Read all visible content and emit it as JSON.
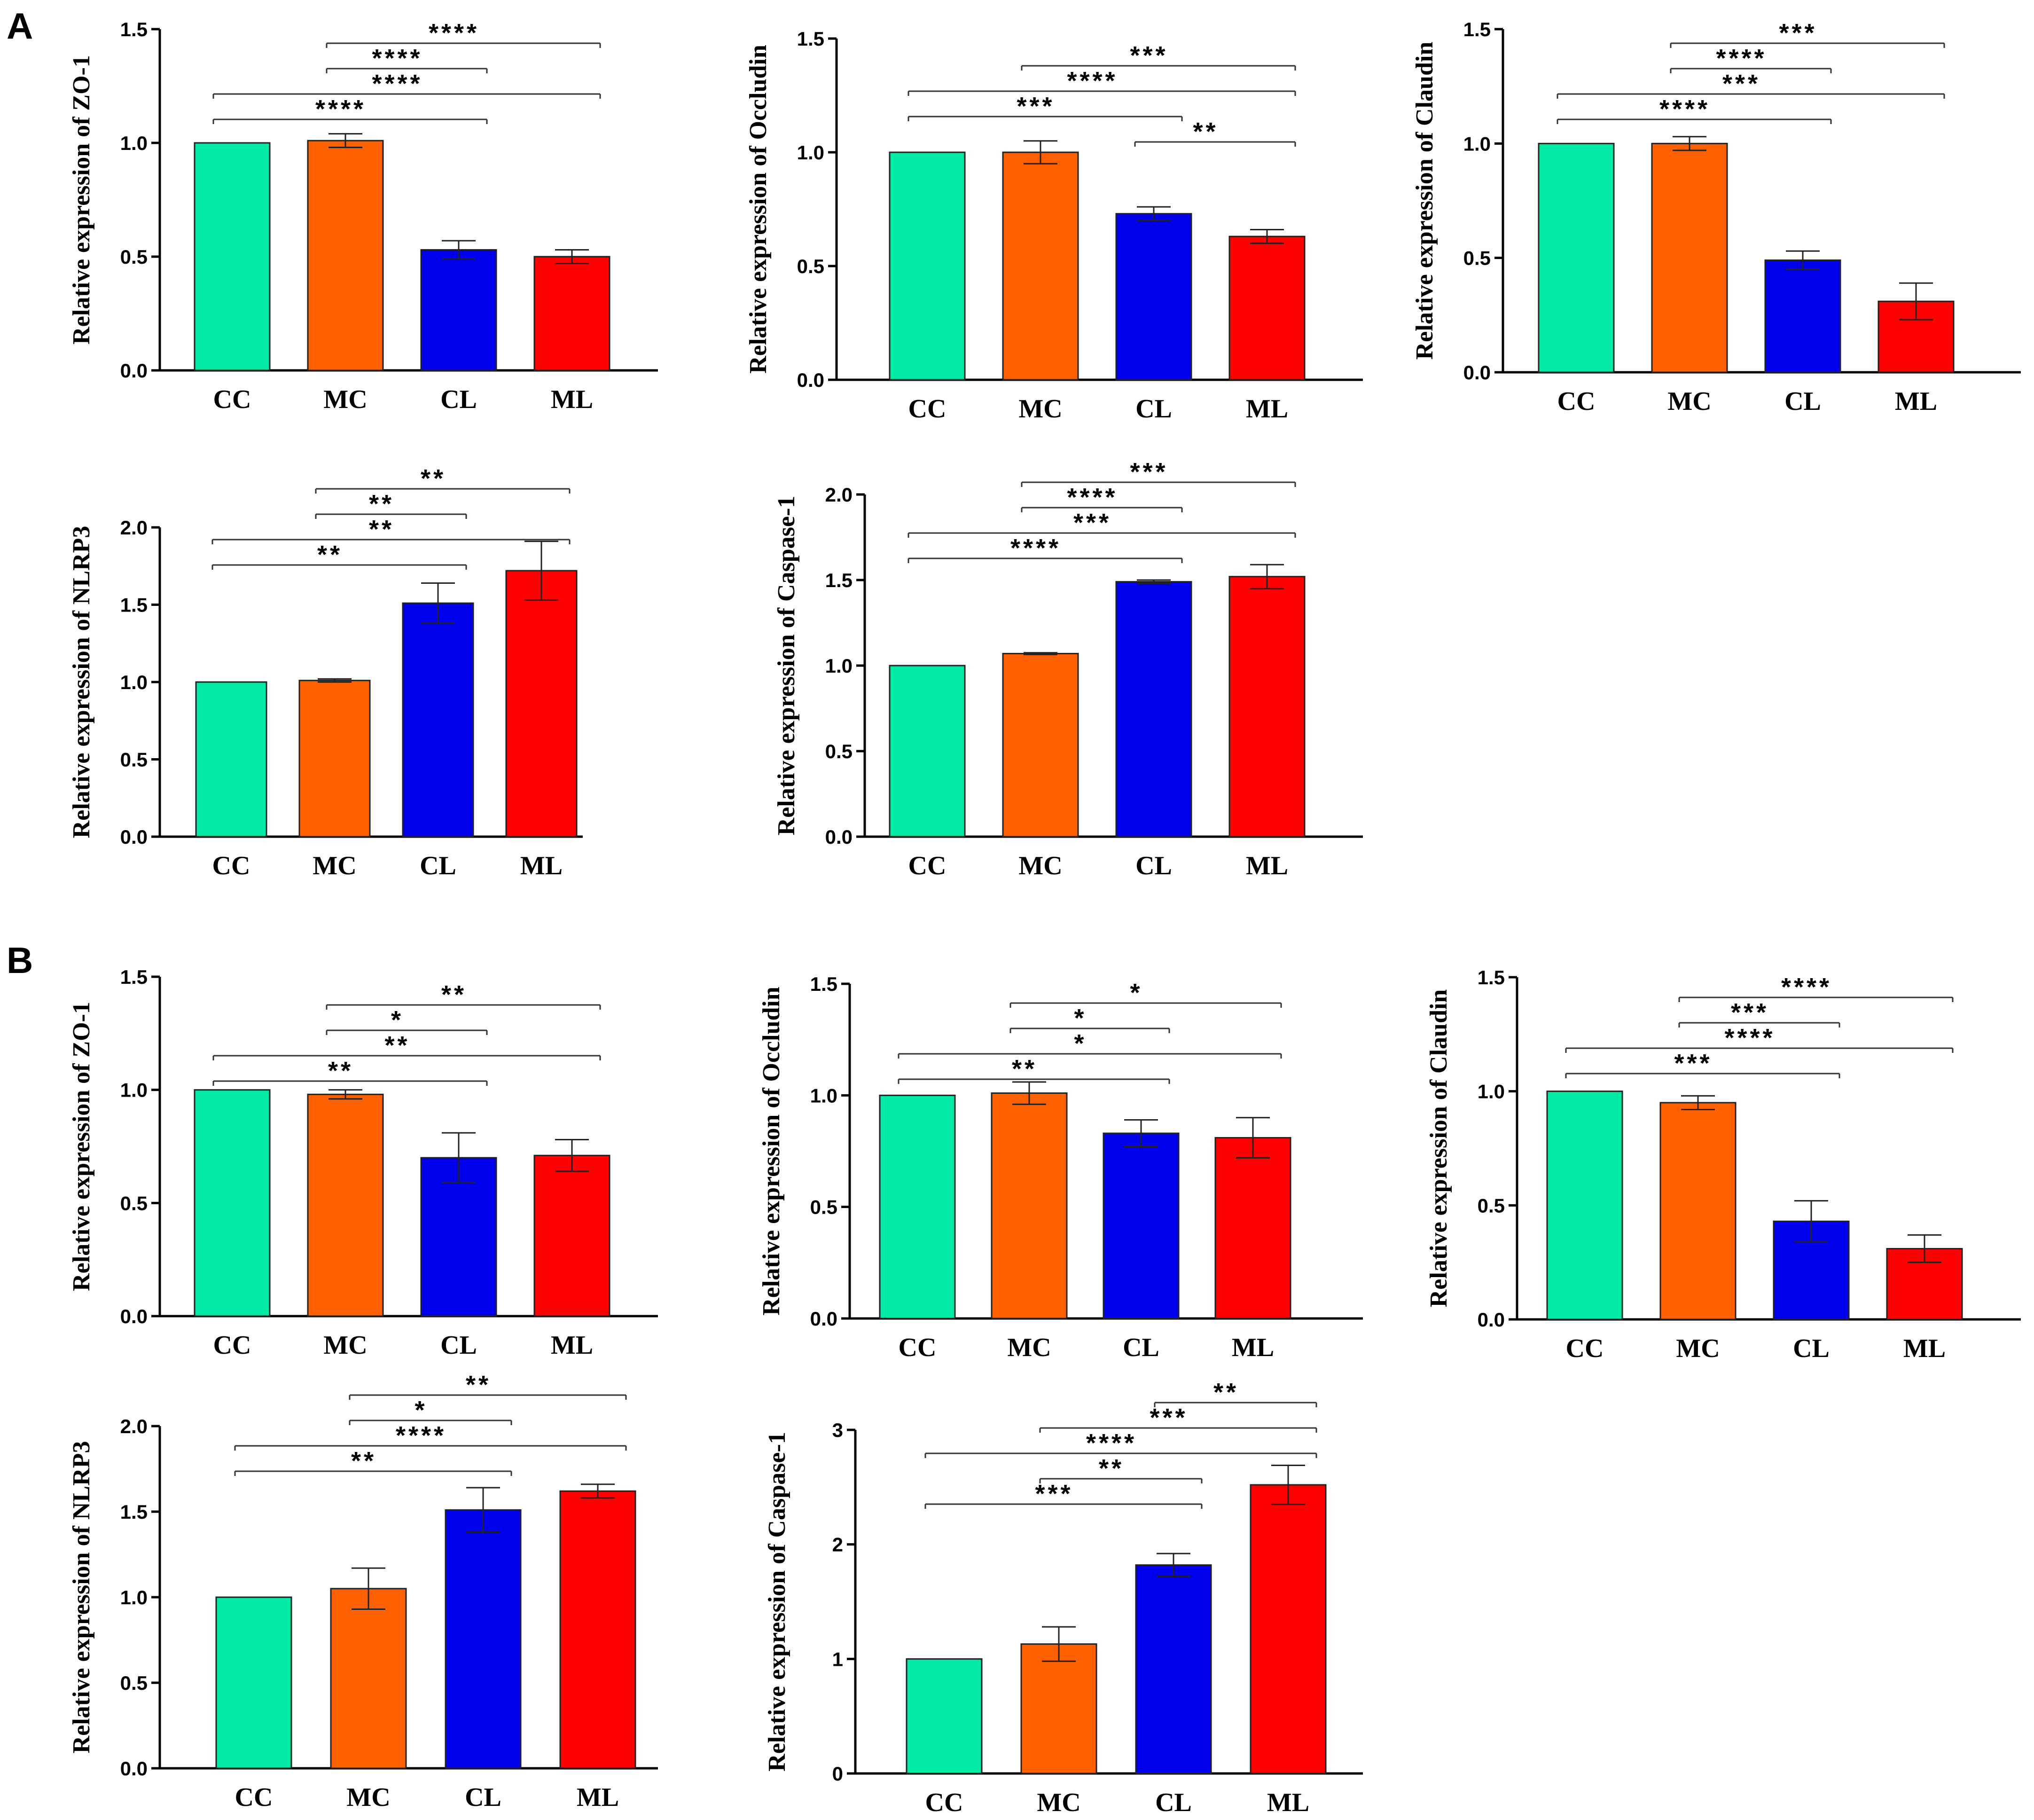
{
  "panel_labels": [
    "A",
    "B"
  ],
  "chart_data": [
    {
      "type": "bar",
      "panel": "A",
      "title": "",
      "xlabel": "",
      "ylabel": "Relative expression of ZO-1",
      "categories": [
        "CC",
        "MC",
        "CL",
        "ML"
      ],
      "values": [
        1.0,
        1.01,
        0.53,
        0.5
      ],
      "errors": [
        0,
        0.03,
        0.04,
        0.03
      ],
      "ylim": [
        0,
        1.5
      ],
      "yticks": [
        "0.0",
        "0.5",
        "1.0",
        "1.5"
      ],
      "tick_values": [
        0,
        0.5,
        1.0,
        1.5
      ],
      "colors": [
        "#00EAA5",
        "#FF6000",
        "#0000EE",
        "#FF0000"
      ],
      "significance": [
        {
          "from": 0,
          "to": 2,
          "label": "****",
          "level": 1
        },
        {
          "from": 0,
          "to": 3,
          "label": "****",
          "level": 2
        },
        {
          "from": 1,
          "to": 2,
          "label": "****",
          "level": 3
        },
        {
          "from": 1,
          "to": 3,
          "label": "****",
          "level": 4
        }
      ]
    },
    {
      "type": "bar",
      "panel": "A",
      "title": "",
      "xlabel": "",
      "ylabel": "Relative expression of Occludin",
      "categories": [
        "CC",
        "MC",
        "CL",
        "ML"
      ],
      "values": [
        1.0,
        1.0,
        0.73,
        0.63
      ],
      "errors": [
        0,
        0.05,
        0.03,
        0.03
      ],
      "ylim": [
        0,
        1.5
      ],
      "yticks": [
        "0.0",
        "0.5",
        "1.0",
        "1.5"
      ],
      "tick_values": [
        0,
        0.5,
        1.0,
        1.5
      ],
      "colors": [
        "#00EAA5",
        "#FF6000",
        "#0000EE",
        "#FF0000"
      ],
      "significance": [
        {
          "from": 2,
          "to": 3,
          "label": "**",
          "level": 0
        },
        {
          "from": 0,
          "to": 2,
          "label": "***",
          "level": 1
        },
        {
          "from": 0,
          "to": 3,
          "label": "****",
          "level": 2
        },
        {
          "from": 1,
          "to": 3,
          "label": "***",
          "level": 3
        }
      ]
    },
    {
      "type": "bar",
      "panel": "A",
      "title": "",
      "xlabel": "",
      "ylabel": "Relative expression of Claudin",
      "categories": [
        "CC",
        "MC",
        "CL",
        "ML"
      ],
      "values": [
        1.0,
        1.0,
        0.49,
        0.31
      ],
      "errors": [
        0,
        0.03,
        0.04,
        0.08
      ],
      "ylim": [
        0,
        1.5
      ],
      "yticks": [
        "0.0",
        "0.5",
        "1.0",
        "1.5"
      ],
      "tick_values": [
        0,
        0.5,
        1.0,
        1.5
      ],
      "colors": [
        "#00EAA5",
        "#FF6000",
        "#0000EE",
        "#FF0000"
      ],
      "significance": [
        {
          "from": 0,
          "to": 2,
          "label": "****",
          "level": 1
        },
        {
          "from": 0,
          "to": 3,
          "label": "***",
          "level": 2
        },
        {
          "from": 1,
          "to": 2,
          "label": "****",
          "level": 3
        },
        {
          "from": 1,
          "to": 3,
          "label": "***",
          "level": 4
        }
      ]
    },
    {
      "type": "bar",
      "panel": "A",
      "title": "",
      "xlabel": "",
      "ylabel": "Relative expression of NLRP3",
      "categories": [
        "CC",
        "MC",
        "CL",
        "ML"
      ],
      "values": [
        1.0,
        1.01,
        1.51,
        1.72
      ],
      "errors": [
        0,
        0.01,
        0.13,
        0.19
      ],
      "ylim": [
        0,
        2.0
      ],
      "yticks": [
        "0.0",
        "0.5",
        "1.0",
        "1.5",
        "2.0"
      ],
      "tick_values": [
        0,
        0.5,
        1.0,
        1.5,
        2.0
      ],
      "colors": [
        "#00EAA5",
        "#FF6000",
        "#0000EE",
        "#FF0000"
      ],
      "significance": [
        {
          "from": 0,
          "to": 2,
          "label": "**",
          "level": 1
        },
        {
          "from": 0,
          "to": 3,
          "label": "**",
          "level": 2
        },
        {
          "from": 1,
          "to": 2,
          "label": "**",
          "level": 3
        },
        {
          "from": 1,
          "to": 3,
          "label": "**",
          "level": 4
        }
      ]
    },
    {
      "type": "bar",
      "panel": "A",
      "title": "",
      "xlabel": "",
      "ylabel": "Relative expression of Caspase-1",
      "categories": [
        "CC",
        "MC",
        "CL",
        "ML"
      ],
      "values": [
        1.0,
        1.07,
        1.49,
        1.52
      ],
      "errors": [
        0,
        0.005,
        0.01,
        0.07
      ],
      "ylim": [
        0,
        2.0
      ],
      "yticks": [
        "0.0",
        "0.5",
        "1.0",
        "1.5",
        "2.0"
      ],
      "tick_values": [
        0,
        0.5,
        1.0,
        1.5,
        2.0
      ],
      "colors": [
        "#00EAA5",
        "#FF6000",
        "#0000EE",
        "#FF0000"
      ],
      "significance": [
        {
          "from": 0,
          "to": 2,
          "label": "****",
          "level": 1
        },
        {
          "from": 0,
          "to": 3,
          "label": "***",
          "level": 2
        },
        {
          "from": 1,
          "to": 2,
          "label": "****",
          "level": 3
        },
        {
          "from": 1,
          "to": 3,
          "label": "***",
          "level": 4
        }
      ]
    },
    {
      "type": "bar",
      "panel": "B",
      "title": "",
      "xlabel": "",
      "ylabel": "Relative expression of ZO-1",
      "categories": [
        "CC",
        "MC",
        "CL",
        "ML"
      ],
      "values": [
        1.0,
        0.98,
        0.7,
        0.71
      ],
      "errors": [
        0,
        0.02,
        0.11,
        0.07
      ],
      "ylim": [
        0,
        1.5
      ],
      "yticks": [
        "0.0",
        "0.5",
        "1.0",
        "1.5"
      ],
      "tick_values": [
        0,
        0.5,
        1.0,
        1.5
      ],
      "colors": [
        "#00EAA5",
        "#FF6000",
        "#0000EE",
        "#FF0000"
      ],
      "significance": [
        {
          "from": 0,
          "to": 2,
          "label": "**",
          "level": 1
        },
        {
          "from": 0,
          "to": 3,
          "label": "**",
          "level": 2
        },
        {
          "from": 1,
          "to": 2,
          "label": "*",
          "level": 3
        },
        {
          "from": 1,
          "to": 3,
          "label": "**",
          "level": 4
        }
      ]
    },
    {
      "type": "bar",
      "panel": "B",
      "title": "",
      "xlabel": "",
      "ylabel": "Relative expression of Occludin",
      "categories": [
        "CC",
        "MC",
        "CL",
        "ML"
      ],
      "values": [
        1.0,
        1.01,
        0.83,
        0.81
      ],
      "errors": [
        0,
        0.05,
        0.06,
        0.09
      ],
      "ylim": [
        0,
        1.5
      ],
      "yticks": [
        "0.0",
        "0.5",
        "1.0",
        "1.5"
      ],
      "tick_values": [
        0,
        0.5,
        1.0,
        1.5
      ],
      "colors": [
        "#00EAA5",
        "#FF6000",
        "#0000EE",
        "#FF0000"
      ],
      "significance": [
        {
          "from": 0,
          "to": 2,
          "label": "**",
          "level": 1
        },
        {
          "from": 0,
          "to": 3,
          "label": "*",
          "level": 2
        },
        {
          "from": 1,
          "to": 2,
          "label": "*",
          "level": 3
        },
        {
          "from": 1,
          "to": 3,
          "label": "*",
          "level": 4
        }
      ]
    },
    {
      "type": "bar",
      "panel": "B",
      "title": "",
      "xlabel": "",
      "ylabel": "Relative expression of Claudin",
      "categories": [
        "CC",
        "MC",
        "CL",
        "ML"
      ],
      "values": [
        1.0,
        0.95,
        0.43,
        0.31
      ],
      "errors": [
        0,
        0.03,
        0.09,
        0.06
      ],
      "ylim": [
        0,
        1.5
      ],
      "yticks": [
        "0.0",
        "0.5",
        "1.0",
        "1.5"
      ],
      "tick_values": [
        0,
        0.5,
        1.0,
        1.5
      ],
      "colors": [
        "#00EAA5",
        "#FF6000",
        "#0000EE",
        "#FF0000"
      ],
      "significance": [
        {
          "from": 0,
          "to": 2,
          "label": "***",
          "level": 1
        },
        {
          "from": 0,
          "to": 3,
          "label": "****",
          "level": 2
        },
        {
          "from": 1,
          "to": 2,
          "label": "***",
          "level": 3
        },
        {
          "from": 1,
          "to": 3,
          "label": "****",
          "level": 4
        }
      ]
    },
    {
      "type": "bar",
      "panel": "B",
      "title": "",
      "xlabel": "",
      "ylabel": "Relative expression of NLRP3",
      "categories": [
        "CC",
        "MC",
        "CL",
        "ML"
      ],
      "values": [
        1.0,
        1.05,
        1.51,
        1.62
      ],
      "errors": [
        0,
        0.12,
        0.13,
        0.04
      ],
      "ylim": [
        0,
        2.0
      ],
      "yticks": [
        "0.0",
        "0.5",
        "1.0",
        "1.5",
        "2.0"
      ],
      "tick_values": [
        0,
        0.5,
        1.0,
        1.5,
        2.0
      ],
      "colors": [
        "#00EAA5",
        "#FF6000",
        "#0000EE",
        "#FF0000"
      ],
      "significance": [
        {
          "from": 0,
          "to": 2,
          "label": "**",
          "level": 1
        },
        {
          "from": 0,
          "to": 3,
          "label": "****",
          "level": 2
        },
        {
          "from": 1,
          "to": 2,
          "label": "*",
          "level": 3
        },
        {
          "from": 1,
          "to": 3,
          "label": "**",
          "level": 4
        }
      ]
    },
    {
      "type": "bar",
      "panel": "B",
      "title": "",
      "xlabel": "",
      "ylabel": "Relative expression of Caspase-1",
      "categories": [
        "CC",
        "MC",
        "CL",
        "ML"
      ],
      "values": [
        1.0,
        1.13,
        1.82,
        2.52
      ],
      "errors": [
        0,
        0.15,
        0.1,
        0.17
      ],
      "ylim": [
        0,
        3
      ],
      "yticks": [
        "0",
        "1",
        "2",
        "3"
      ],
      "tick_values": [
        0,
        1,
        2,
        3
      ],
      "colors": [
        "#00EAA5",
        "#FF6000",
        "#0000EE",
        "#FF0000"
      ],
      "significance": [
        {
          "from": 0,
          "to": 2,
          "label": "***",
          "level": 1
        },
        {
          "from": 1,
          "to": 2,
          "label": "**",
          "level": 2
        },
        {
          "from": 0,
          "to": 3,
          "label": "****",
          "level": 3
        },
        {
          "from": 1,
          "to": 3,
          "label": "***",
          "level": 4
        },
        {
          "from": 2,
          "to": 3,
          "label": "**",
          "level": 5
        }
      ]
    }
  ]
}
